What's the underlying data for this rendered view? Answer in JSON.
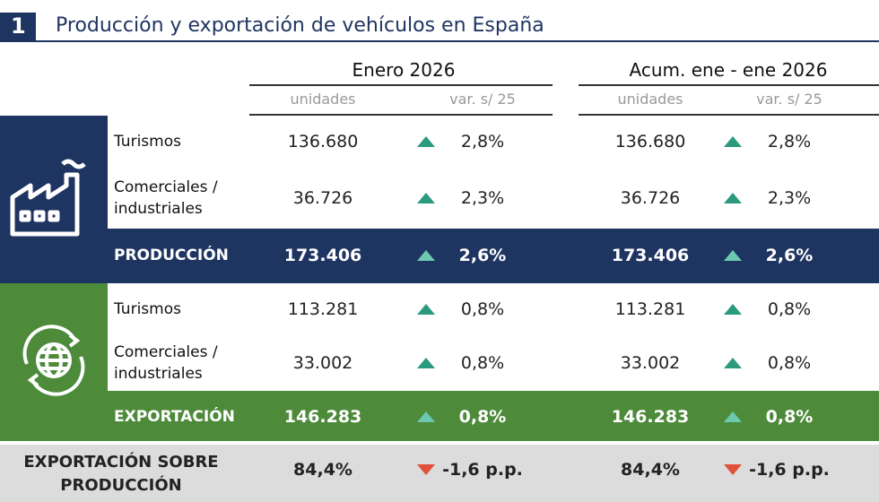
{
  "header": {
    "number": "1",
    "title": "Producción y exportación de vehículos en España"
  },
  "columns": {
    "groups": [
      "Enero 2026",
      "Acum. ene - ene 2026"
    ],
    "subheaders": [
      "unidades",
      "var. s/ 25",
      "unidades",
      "var. s/ 25"
    ]
  },
  "sections": [
    {
      "rows": [
        {
          "label": "Turismos",
          "cells": [
            "136.680",
            "2,8%",
            "136.680",
            "2,8%"
          ]
        },
        {
          "label": "Comerciales / industriales",
          "cells": [
            "36.726",
            "2,3%",
            "36.726",
            "2,3%"
          ]
        }
      ],
      "total": {
        "label": "PRODUCCIÓN",
        "cells": [
          "173.406",
          "2,6%",
          "173.406",
          "2,6%"
        ]
      }
    },
    {
      "rows": [
        {
          "label": "Turismos",
          "cells": [
            "113.281",
            "0,8%",
            "113.281",
            "0,8%"
          ]
        },
        {
          "label": "Comerciales / industriales",
          "cells": [
            "33.002",
            "0,8%",
            "33.002",
            "0,8%"
          ]
        }
      ],
      "total": {
        "label": "EXPORTACIÓN",
        "cells": [
          "146.283",
          "0,8%",
          "146.283",
          "0,8%"
        ]
      }
    }
  ],
  "ratio": {
    "label": "EXPORTACIÓN SOBRE PRODUCCIÓN",
    "cells": [
      "84,4%",
      "-1,6 p.p.",
      "84,4%",
      "-1,6 p.p."
    ]
  }
}
